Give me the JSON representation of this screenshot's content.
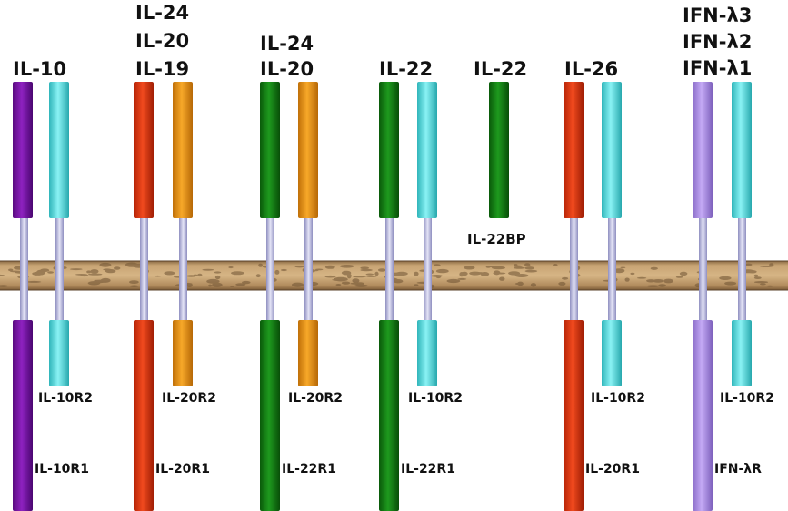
{
  "colors": {
    "purple": "#7a0fa6",
    "cyan": "#52dce0",
    "red": "#e0340e",
    "orange": "#e8940a",
    "green": "#127a12",
    "lavender": "#a98be6",
    "stalk": "#b9b8d8",
    "membrane": "#b08a5c",
    "membrane_dark": "#6e5232"
  },
  "ligands": {
    "il10": "IL-10",
    "il24_a": "IL-24",
    "il20_a": "IL-20",
    "il19": "IL-19",
    "il24_b": "IL-24",
    "il20_b": "IL-20",
    "il22_a": "IL-22",
    "il22_b": "IL-22",
    "il26": "IL-26",
    "ifnl3": "IFN-λ3",
    "ifnl2": "IFN-λ2",
    "ifnl1": "IFN-λ1"
  },
  "receptors": {
    "il10r2_1": "IL-10R2",
    "il10r1": "IL-10R1",
    "il20r2_1": "IL-20R2",
    "il20r1_1": "IL-20R1",
    "il20r2_2": "IL-20R2",
    "il22r1_1": "IL-22R1",
    "il10r2_2": "IL-10R2",
    "il22r1_2": "IL-22R1",
    "il22bp": "IL-22BP",
    "il10r2_3": "IL-10R2",
    "il20r1_2": "IL-20R1",
    "il10r2_4": "IL-10R2",
    "ifnlr": "IFN-λR"
  }
}
